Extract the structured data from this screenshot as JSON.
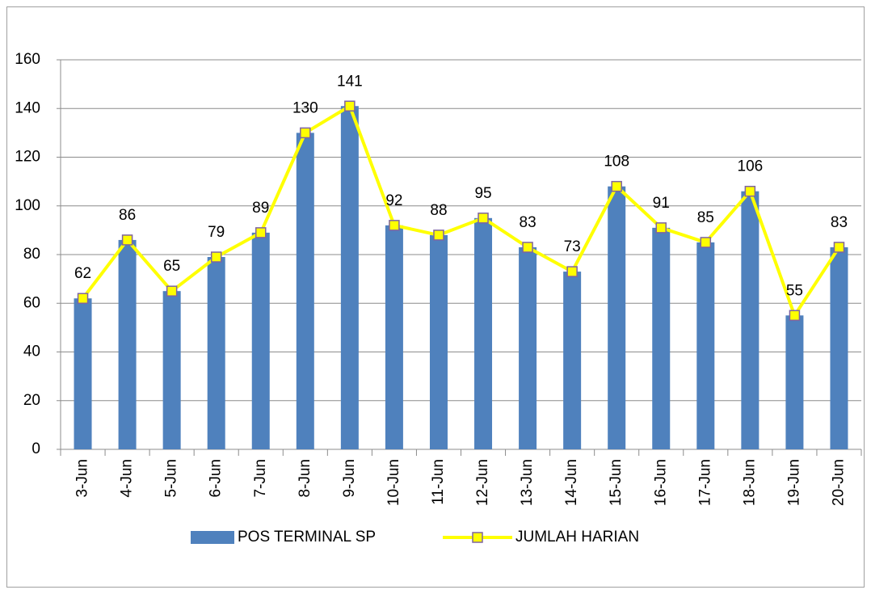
{
  "chart_data": {
    "type": "bar",
    "categories": [
      "3-Jun",
      "4-Jun",
      "5-Jun",
      "6-Jun",
      "7-Jun",
      "8-Jun",
      "9-Jun",
      "10-Jun",
      "11-Jun",
      "12-Jun",
      "13-Jun",
      "14-Jun",
      "15-Jun",
      "16-Jun",
      "17-Jun",
      "18-Jun",
      "19-Jun",
      "20-Jun"
    ],
    "series": [
      {
        "name": "POS TERMINAL SP",
        "type": "bar",
        "color": "#4f81bd",
        "values": [
          62,
          86,
          65,
          79,
          89,
          130,
          141,
          92,
          88,
          95,
          83,
          73,
          108,
          91,
          85,
          106,
          55,
          83
        ]
      },
      {
        "name": "JUMLAH HARIAN",
        "type": "line",
        "color": "#ffff00",
        "marker_edge": "#7f64a0",
        "values": [
          62,
          86,
          65,
          79,
          89,
          130,
          141,
          92,
          88,
          95,
          83,
          73,
          108,
          91,
          85,
          106,
          55,
          83
        ]
      }
    ],
    "ylim": [
      0,
      160
    ],
    "yticks": [
      0,
      20,
      40,
      60,
      80,
      100,
      120,
      140,
      160
    ],
    "grid": true,
    "legend": "bottom"
  }
}
